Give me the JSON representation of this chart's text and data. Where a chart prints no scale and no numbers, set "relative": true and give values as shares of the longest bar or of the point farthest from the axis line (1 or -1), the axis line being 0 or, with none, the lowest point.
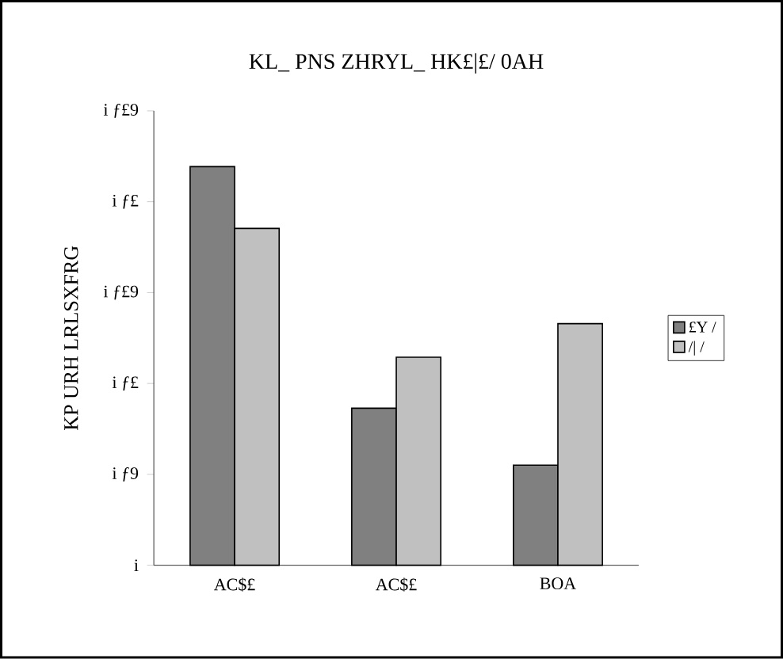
{
  "chart_data": {
    "type": "bar",
    "title": "KL_ PNS ZHRYL_ HK£|£/ 0AH",
    "ylabel": "KP URH LRLSXFRG",
    "categories": [
      "AC$£",
      "AC$£",
      "BOA"
    ],
    "series": [
      {
        "name": "£Y /",
        "color": "#808080",
        "values": [
          1,
          0.394,
          0.251
        ]
      },
      {
        "name": "/| /",
        "color": "#c0c0c0",
        "values": [
          0.845,
          0.522,
          0.606
        ]
      }
    ],
    "relative": true,
    "annotations": [
      "i",
      "i ƒ9",
      "i ƒ£",
      "i ƒ£9",
      "i ƒ£",
      "i ƒ£9"
    ],
    "grid": false,
    "legend": "right"
  }
}
